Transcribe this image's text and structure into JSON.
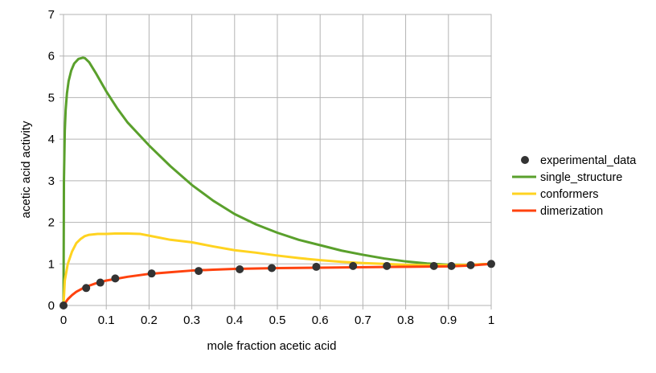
{
  "chart_data": {
    "type": "line",
    "title": "",
    "xlabel": "mole fraction acetic acid",
    "ylabel": "acetic acid activity",
    "xlim": [
      0,
      1
    ],
    "ylim": [
      0,
      7
    ],
    "x_ticks": [
      "0",
      "0.1",
      "0.2",
      "0.3",
      "0.4",
      "0.5",
      "0.6",
      "0.7",
      "0.8",
      "0.9",
      "1"
    ],
    "y_ticks": [
      "0",
      "1",
      "2",
      "3",
      "4",
      "5",
      "6",
      "7"
    ],
    "grid": true,
    "legend_position": "right",
    "series": [
      {
        "name": "experimental_data",
        "kind": "scatter",
        "color": "#333333",
        "x": [
          0.0,
          0.053,
          0.086,
          0.121,
          0.206,
          0.316,
          0.412,
          0.487,
          0.591,
          0.677,
          0.756,
          0.866,
          0.907,
          0.952,
          1.0
        ],
        "y": [
          0.0,
          0.42,
          0.55,
          0.65,
          0.77,
          0.83,
          0.87,
          0.9,
          0.93,
          0.95,
          0.95,
          0.95,
          0.95,
          0.97,
          1.0
        ]
      },
      {
        "name": "single_structure",
        "kind": "line",
        "color": "#5aa02c",
        "x": [
          0.0,
          0.001,
          0.003,
          0.005,
          0.008,
          0.012,
          0.018,
          0.025,
          0.035,
          0.045,
          0.05,
          0.06,
          0.075,
          0.1,
          0.125,
          0.15,
          0.2,
          0.25,
          0.3,
          0.35,
          0.4,
          0.45,
          0.5,
          0.55,
          0.6,
          0.65,
          0.7,
          0.75,
          0.8,
          0.85,
          0.9,
          0.95,
          1.0
        ],
        "y": [
          0.0,
          3.0,
          4.2,
          4.7,
          5.1,
          5.4,
          5.65,
          5.82,
          5.93,
          5.96,
          5.95,
          5.85,
          5.6,
          5.15,
          4.75,
          4.4,
          3.85,
          3.35,
          2.9,
          2.52,
          2.2,
          1.95,
          1.75,
          1.58,
          1.45,
          1.32,
          1.22,
          1.13,
          1.06,
          1.01,
          0.98,
          0.98,
          1.0
        ]
      },
      {
        "name": "conformers",
        "kind": "line",
        "color": "#ffd320",
        "x": [
          0.0,
          0.003,
          0.01,
          0.02,
          0.03,
          0.04,
          0.05,
          0.06,
          0.08,
          0.1,
          0.12,
          0.15,
          0.18,
          0.2,
          0.25,
          0.3,
          0.35,
          0.4,
          0.45,
          0.5,
          0.55,
          0.6,
          0.65,
          0.7,
          0.75,
          0.8,
          0.85,
          0.9,
          0.95,
          1.0
        ],
        "y": [
          0.0,
          0.6,
          1.0,
          1.3,
          1.5,
          1.6,
          1.67,
          1.7,
          1.72,
          1.72,
          1.73,
          1.73,
          1.72,
          1.68,
          1.58,
          1.52,
          1.42,
          1.33,
          1.27,
          1.2,
          1.14,
          1.09,
          1.05,
          1.02,
          1.0,
          0.98,
          0.97,
          0.97,
          0.98,
          1.0
        ]
      },
      {
        "name": "dimerization",
        "kind": "line",
        "color": "#ff420e",
        "x": [
          0.0,
          0.01,
          0.02,
          0.03,
          0.05,
          0.075,
          0.1,
          0.15,
          0.2,
          0.25,
          0.3,
          0.35,
          0.4,
          0.5,
          0.6,
          0.7,
          0.8,
          0.9,
          0.95,
          1.0
        ],
        "y": [
          0.0,
          0.15,
          0.25,
          0.33,
          0.44,
          0.53,
          0.6,
          0.69,
          0.76,
          0.8,
          0.84,
          0.86,
          0.88,
          0.9,
          0.91,
          0.92,
          0.93,
          0.94,
          0.96,
          1.0
        ]
      }
    ]
  }
}
